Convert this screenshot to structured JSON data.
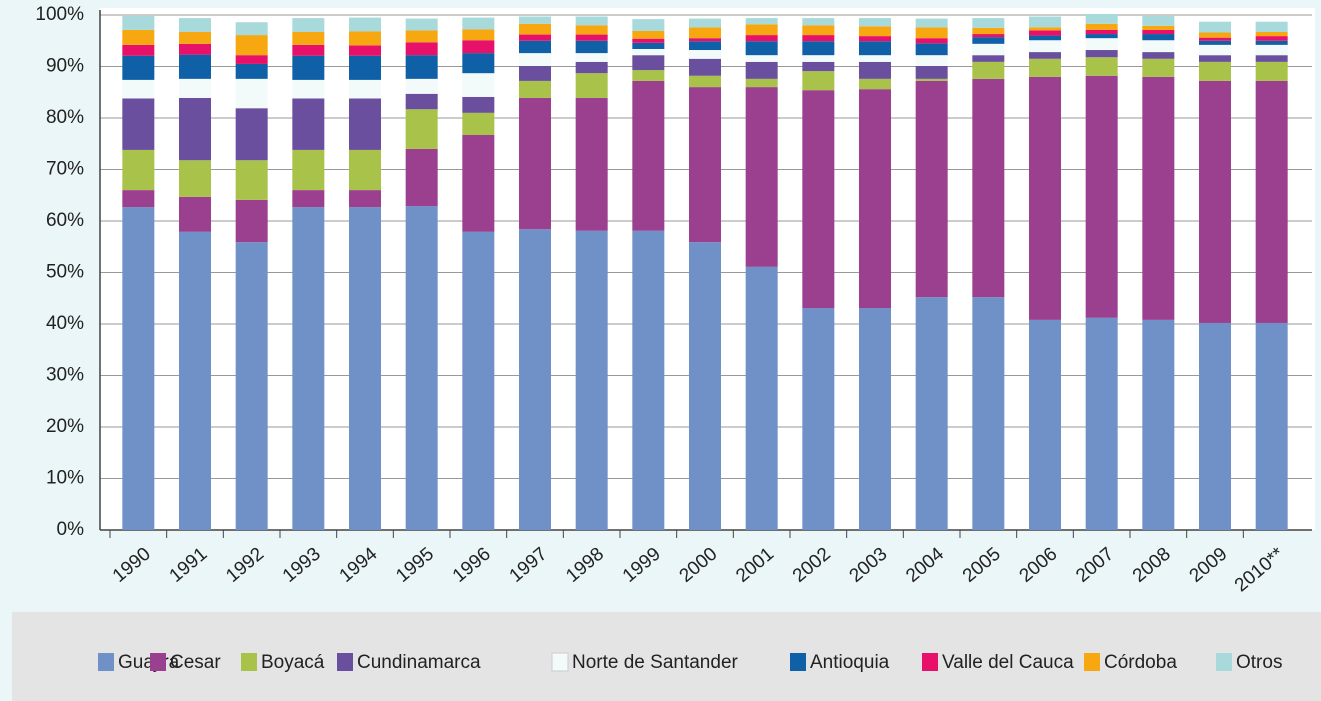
{
  "chart_data": {
    "type": "stacked_bar",
    "categories": [
      "1990",
      "1991",
      "1992",
      "1993",
      "1994",
      "1995",
      "1996",
      "1997",
      "1998",
      "1999",
      "2000",
      "2001",
      "2002",
      "2003",
      "2004",
      "2005",
      "2006",
      "2007",
      "2008",
      "2009",
      "2010**"
    ],
    "ylim": [
      0,
      100
    ],
    "yticks": [
      {
        "value": 0,
        "label": "0%"
      },
      {
        "value": 10,
        "label": "10%"
      },
      {
        "value": 20,
        "label": "20%"
      },
      {
        "value": 30,
        "label": "30%"
      },
      {
        "value": 40,
        "label": "40%"
      },
      {
        "value": 50,
        "label": "50%"
      },
      {
        "value": 60,
        "label": "60%"
      },
      {
        "value": 70,
        "label": "70%"
      },
      {
        "value": 80,
        "label": "80%"
      },
      {
        "value": 90,
        "label": "90%"
      },
      {
        "value": 100,
        "label": "100%"
      }
    ],
    "grid": true,
    "series": [
      {
        "name": "Guajira",
        "color": "#7090c8",
        "values": [
          62.7,
          57.9,
          55.9,
          62.7,
          62.7,
          62.9,
          57.9,
          58.4,
          58.1,
          58.1,
          55.9,
          51.1,
          43.1,
          43.1,
          45.2,
          45.2,
          40.8,
          41.2,
          40.8,
          40.2,
          40.2
        ]
      },
      {
        "name": "Cesar",
        "color": "#9b3f8f",
        "values": [
          3.3,
          6.8,
          8.2,
          3.3,
          3.3,
          11.1,
          18.8,
          25.5,
          25.8,
          29.1,
          30.1,
          34.9,
          42.3,
          42.5,
          42,
          42.4,
          47.2,
          47,
          47.2,
          47,
          47
        ]
      },
      {
        "name": "Boyacá",
        "color": "#a8c24a",
        "values": [
          7.8,
          7.1,
          7.7,
          7.8,
          7.8,
          7.7,
          4.3,
          3.3,
          4.8,
          2.1,
          2.2,
          1.6,
          3.7,
          2,
          0.4,
          3.3,
          3.5,
          3.6,
          3.5,
          3.7,
          3.7
        ]
      },
      {
        "name": "Cundinamarca",
        "color": "#6a4f9e",
        "values": [
          10,
          12.1,
          10.1,
          10,
          10,
          3,
          3.1,
          2.9,
          2.2,
          2.9,
          3.3,
          3.3,
          1.8,
          3.3,
          2.5,
          1.3,
          1.3,
          1.4,
          1.3,
          1.3,
          1.3
        ]
      },
      {
        "name": "Norte de Santander",
        "color": "#f2fafa",
        "values": [
          3.6,
          3.7,
          5.7,
          3.6,
          3.6,
          2.9,
          4.6,
          2.5,
          1.7,
          1.2,
          1.7,
          1.3,
          1.3,
          1.3,
          2.1,
          2.2,
          2.3,
          2.3,
          2.3,
          2,
          2
        ]
      },
      {
        "name": "Antioquia",
        "color": "#1060a8",
        "values": [
          4.7,
          4.7,
          2.9,
          4.7,
          4.7,
          4.6,
          3.9,
          2.4,
          2.4,
          1.2,
          1.7,
          2.7,
          2.7,
          2.7,
          2.3,
          1.3,
          0.9,
          0.8,
          1.2,
          0.8,
          0.8
        ]
      },
      {
        "name": "Valle del Cauca",
        "color": "#e8116a",
        "values": [
          2.1,
          2.1,
          1.7,
          2.1,
          2,
          2.5,
          2.5,
          1.2,
          1.2,
          0.8,
          0.6,
          1.2,
          1.2,
          1,
          1,
          0.6,
          1,
          0.8,
          0.8,
          0.6,
          0.9
        ]
      },
      {
        "name": "Córdoba",
        "color": "#f7a70f",
        "values": [
          2.9,
          2.3,
          3.9,
          2.5,
          2.7,
          2.3,
          2.1,
          2.1,
          1.8,
          1.5,
          2.1,
          2.1,
          1.9,
          1.9,
          2.1,
          1.2,
          0.6,
          1.2,
          0.8,
          1,
          0.8
        ]
      },
      {
        "name": "Otros",
        "color": "#a8dadc",
        "values": [
          2.7,
          2.7,
          2.5,
          2.7,
          2.7,
          2.3,
          2.3,
          1.4,
          1.7,
          2.3,
          1.7,
          1.2,
          1.4,
          1.6,
          1.7,
          1.9,
          2.1,
          1.9,
          1.9,
          2.1,
          2
        ]
      }
    ]
  }
}
